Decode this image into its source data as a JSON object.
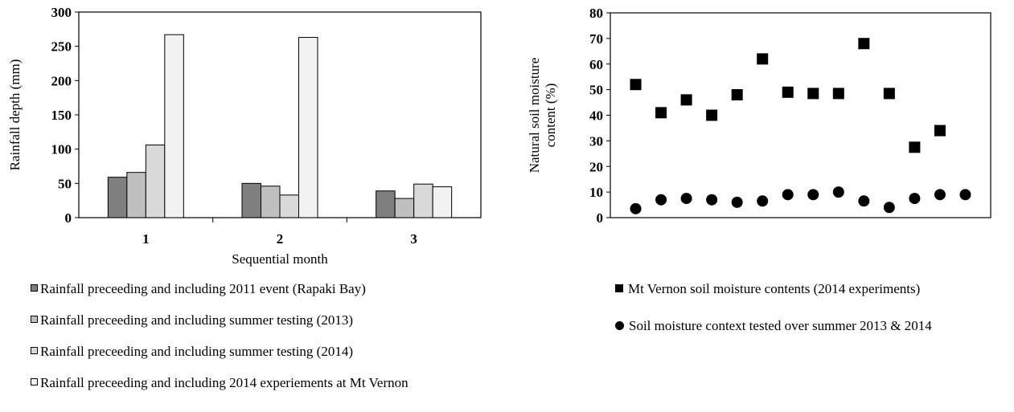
{
  "chart_data": [
    {
      "type": "bar",
      "xlabel": "Sequential month",
      "ylabel": "Rainfall depth (mm)",
      "ylim": [
        0,
        300
      ],
      "yticks": [
        0,
        50,
        100,
        150,
        200,
        250,
        300
      ],
      "categories": [
        "1",
        "2",
        "3"
      ],
      "grid": false,
      "legend_position": "bottom",
      "series": [
        {
          "name": "Rainfall preceeding and including 2011 event (Rapaki Bay)",
          "values": [
            59,
            50,
            39
          ],
          "color": "#7f7f7f"
        },
        {
          "name": "Rainfall preceeding and including summer testing (2013)",
          "values": [
            66,
            46,
            28
          ],
          "color": "#bfbfbf"
        },
        {
          "name": "Rainfall preceeding and including summer testing (2014)",
          "values": [
            106,
            33,
            49
          ],
          "color": "#d9d9d9"
        },
        {
          "name": "Rainfall preceeding and including 2014 experiements at Mt Vernon",
          "values": [
            267,
            263,
            45
          ],
          "color": "#f2f2f2"
        }
      ]
    },
    {
      "type": "scatter",
      "xlabel": "",
      "ylabel": "Natural soil moisture content (%)",
      "ylim": [
        0,
        80
      ],
      "yticks": [
        0,
        10,
        20,
        30,
        40,
        50,
        60,
        70,
        80
      ],
      "xlim": [
        0,
        15
      ],
      "grid": false,
      "legend_position": "bottom",
      "series": [
        {
          "name": "Mt Vernon soil moisture contents (2014 experiments)",
          "marker": "square",
          "color": "#000000",
          "x": [
            1,
            2,
            3,
            4,
            5,
            6,
            7,
            8,
            9,
            10,
            11,
            12,
            13
          ],
          "y": [
            52,
            41,
            46,
            40,
            48,
            62,
            49,
            48.5,
            48.5,
            68,
            48.5,
            27.5,
            34
          ]
        },
        {
          "name": "Soil moisture context tested over summer 2013 & 2014",
          "marker": "circle",
          "color": "#000000",
          "x": [
            1,
            2,
            3,
            4,
            5,
            6,
            7,
            8,
            9,
            10,
            11,
            12,
            13,
            14
          ],
          "y": [
            3.5,
            7,
            7.5,
            7,
            6,
            6.5,
            9,
            9,
            10,
            6.5,
            4,
            7.5,
            9,
            9
          ]
        }
      ]
    }
  ]
}
